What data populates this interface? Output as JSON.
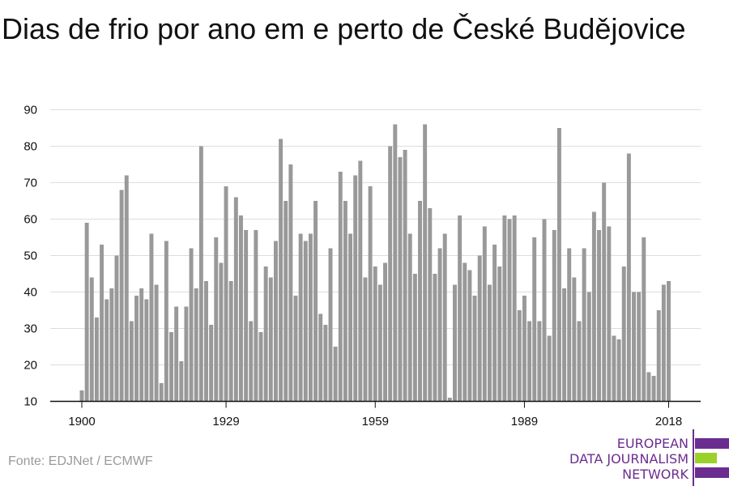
{
  "header": {
    "title": "Dias de frio por ano em e perto de České Budějovice"
  },
  "footer": {
    "source": "Fonte: EDJNet / ECMWF"
  },
  "logo": {
    "line1": "EUROPEAN",
    "line2": "DATA JOURNALISM",
    "line3": "NETWORK",
    "colors": {
      "purple": "#6b2d90",
      "green": "#9bd22a"
    }
  },
  "chart_data": {
    "type": "bar",
    "x_start": 1900,
    "x_end": 2018,
    "values": [
      13,
      59,
      44,
      33,
      53,
      38,
      41,
      50,
      68,
      72,
      32,
      39,
      41,
      38,
      56,
      42,
      15,
      54,
      29,
      36,
      21,
      36,
      52,
      41,
      80,
      43,
      31,
      55,
      48,
      69,
      43,
      66,
      61,
      57,
      32,
      57,
      29,
      47,
      44,
      54,
      82,
      65,
      75,
      39,
      56,
      54,
      56,
      65,
      34,
      31,
      52,
      25,
      73,
      65,
      56,
      72,
      76,
      44,
      69,
      47,
      42,
      48,
      80,
      86,
      77,
      79,
      56,
      45,
      65,
      86,
      63,
      45,
      52,
      56,
      11,
      42,
      61,
      48,
      46,
      39,
      50,
      58,
      42,
      53,
      47,
      61,
      60,
      61,
      35,
      39,
      32,
      55,
      32,
      60,
      28,
      57,
      85,
      41,
      52,
      44,
      32,
      52,
      40,
      62,
      57,
      70,
      58,
      28,
      27,
      47,
      78,
      40,
      40,
      55,
      18,
      17,
      35,
      42,
      43
    ],
    "x_ticks": [
      "1900",
      "1929",
      "1959",
      "1989",
      "2018"
    ],
    "y_ticks": [
      10,
      20,
      30,
      40,
      50,
      60,
      70,
      80,
      90
    ],
    "ylim": [
      10,
      90
    ],
    "grid": true,
    "bar_color": "#999999"
  }
}
